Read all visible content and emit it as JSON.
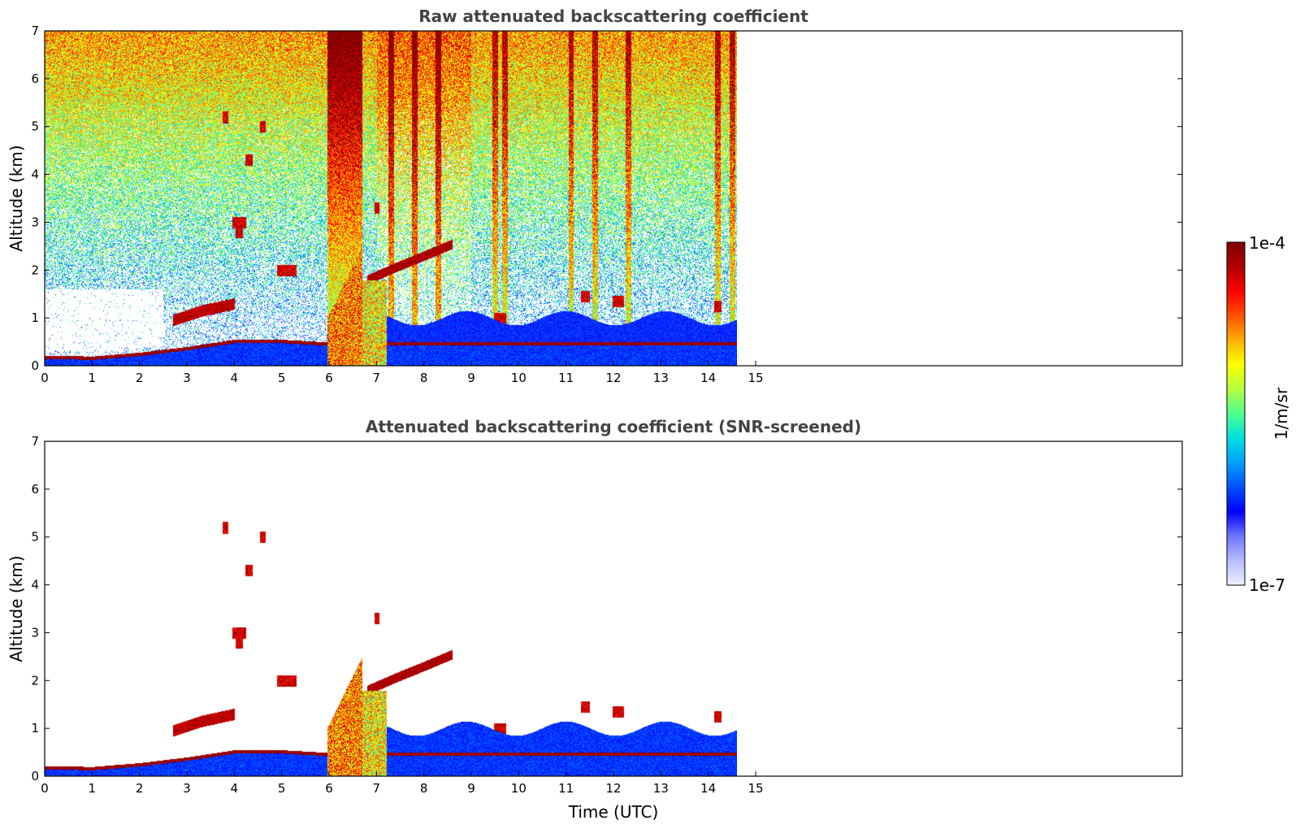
{
  "chart_data": [
    {
      "type": "heatmap",
      "title": "Raw attenuated backscattering coefficient",
      "xlabel": "",
      "ylabel": "Altitude (km)",
      "xlim": [
        0,
        24
      ],
      "ylim": [
        0,
        7
      ],
      "x_ticks": [
        "0",
        "1",
        "2",
        "3",
        "4",
        "5",
        "6",
        "7",
        "8",
        "9",
        "10",
        "11",
        "12",
        "13",
        "14",
        "15"
      ],
      "y_ticks": [
        "0",
        "1",
        "2",
        "3",
        "4",
        "5",
        "6",
        "7"
      ],
      "data_extent_hours": 14.6,
      "features": [
        {
          "name": "boundary-layer-top",
          "points": [
            [
              0,
              0.22
            ],
            [
              1,
              0.2
            ],
            [
              2,
              0.28
            ],
            [
              3,
              0.4
            ],
            [
              4,
              0.55
            ],
            [
              5,
              0.55
            ],
            [
              5.9,
              0.5
            ]
          ]
        },
        {
          "name": "elevated-layer",
          "points": [
            [
              2.7,
              0.95
            ],
            [
              3.3,
              1.15
            ],
            [
              4.0,
              1.3
            ]
          ]
        },
        {
          "name": "rising-layer",
          "points": [
            [
              6.8,
              1.8
            ],
            [
              7.5,
              2.1
            ],
            [
              8.0,
              2.3
            ],
            [
              8.6,
              2.55
            ]
          ]
        }
      ]
    },
    {
      "type": "heatmap",
      "title": "Attenuated backscattering coefficient (SNR-screened)",
      "xlabel": "Time (UTC)",
      "ylabel": "Altitude (km)",
      "xlim": [
        0,
        24
      ],
      "ylim": [
        0,
        7
      ],
      "x_ticks": [
        "0",
        "1",
        "2",
        "3",
        "4",
        "5",
        "6",
        "7",
        "8",
        "9",
        "10",
        "11",
        "12",
        "13",
        "14",
        "15"
      ],
      "y_ticks": [
        "0",
        "1",
        "2",
        "3",
        "4",
        "5",
        "6",
        "7"
      ],
      "data_extent_hours": 14.6
    }
  ],
  "colorbar": {
    "max_label": "1e-4",
    "min_label": "1e-7",
    "unit_label": "1/m/sr",
    "colormap": [
      "#eef0ff",
      "#b8bcff",
      "#6f76ff",
      "#0000ff",
      "#0050ff",
      "#00a0ff",
      "#00e0e0",
      "#50ff90",
      "#b0ff40",
      "#ffff00",
      "#ffb000",
      "#ff5000",
      "#ff0000",
      "#b00000",
      "#7f0000"
    ]
  },
  "colors": {
    "axes": "#000000",
    "title": "#444444"
  }
}
